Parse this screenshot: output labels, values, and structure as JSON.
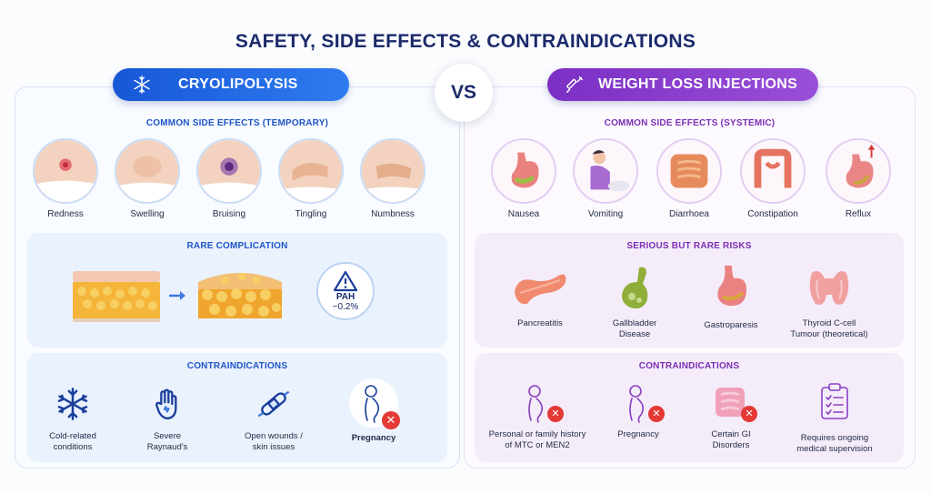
{
  "title": "SAFETY,  SIDE EFFECTS & CONTRAINDICATIONS",
  "vs_label": "VS",
  "left": {
    "header": "CRYOLIPOLYSIS",
    "header_icon": "snowflake-icon",
    "side_effects_title": "COMMON SIDE EFFECTS (TEMPORARY)",
    "side_effects": [
      "Redness",
      "Swelling",
      "Bruising",
      "Tingling",
      "Numbness"
    ],
    "rare_title": "RARE COMPLICATION",
    "rare": {
      "label": "PAH",
      "value": "~0.2%"
    },
    "contra_title": "CONTRAINDICATIONS",
    "contraindications": [
      {
        "line1": "Cold-related",
        "line2": "conditions",
        "icon": "snowflake-icon"
      },
      {
        "line1": "Severe",
        "line2": "Raynaud's",
        "icon": "hand-icon"
      },
      {
        "line1": "Open wounds /",
        "line2": "skin issues",
        "icon": "bandage-icon"
      },
      {
        "line1": "Pregnancy",
        "line2": "",
        "icon": "pregnancy-icon"
      }
    ]
  },
  "right": {
    "header": "WEIGHT LOSS INJECTIONS",
    "header_icon": "syringe-icon",
    "side_effects_title": "COMMON SIDE EFFECTS (SYSTEMIC)",
    "side_effects": [
      "Nausea",
      "Vomiting",
      "Diarrhoea",
      "Constipation",
      "Reflux"
    ],
    "rare_title": "SERIOUS BUT RARE RISKS",
    "rare_risks": [
      {
        "line1": "Pancreatitis",
        "line2": ""
      },
      {
        "line1": "Gallbladder",
        "line2": "Disease"
      },
      {
        "line1": "Gastroparesis",
        "line2": ""
      },
      {
        "line1": "Thyroid C-cell",
        "line2": "Tumour (theoretical)"
      }
    ],
    "contra_title": "CONTRAINDICATIONS",
    "contraindications": [
      {
        "line1": "Personal or family history",
        "line2": "of MTC or MEN2"
      },
      {
        "line1": "Pregnancy",
        "line2": ""
      },
      {
        "line1": "Certain GI",
        "line2": "Disorders"
      },
      {
        "line1": "Requires ongoing",
        "line2": "medical supervision"
      }
    ]
  },
  "colors": {
    "blue": "#1757d6",
    "purple": "#7b2fc4",
    "title": "#1b2a6b",
    "danger": "#e53935"
  }
}
